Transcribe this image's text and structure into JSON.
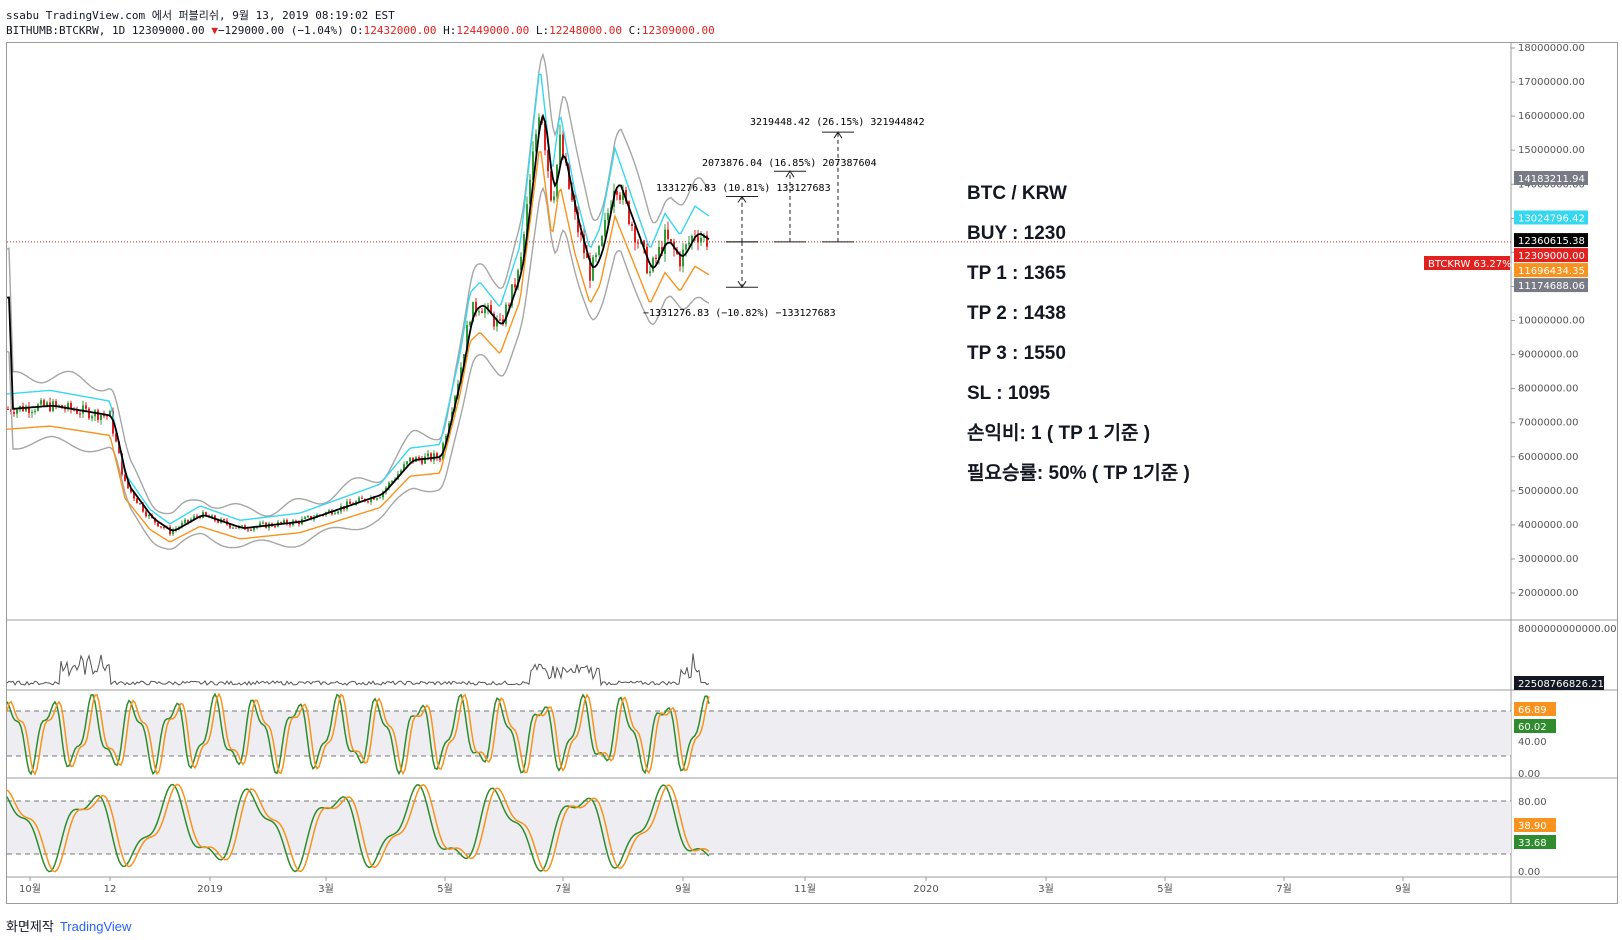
{
  "header": {
    "line1": "ssabu TradingView.com 에서 퍼블리쉬, 9월 13, 2019 08:19:02 EST",
    "symbol": "BITHUMB:BTCKRW, 1D 12309000.00",
    "change": "−129000.00 (−1.04%)",
    "o_label": "O:",
    "o_value": "12432000.00",
    "h_label": "H:",
    "h_value": "12449000.00",
    "l_label": "L:",
    "l_value": "12248000.00",
    "c_label": "C:",
    "c_value": "12309000.00"
  },
  "plan": {
    "pair": "BTC / KRW",
    "buy": "BUY : 1230",
    "tp1": "TP 1 : 1365",
    "tp2": "TP 2 : 1438",
    "tp3": "TP 3 : 1550",
    "sl": "SL : 1095",
    "rr": "손익비: 1 ( TP 1 기준 )",
    "winrate": "필요승률: 50% (  TP 1기준 )"
  },
  "measures": {
    "m1": "1331276.83 (10.81%) 133127683",
    "m2": "2073876.04 (16.85%) 207387604",
    "m3": "3219448.42 (26.15%) 321944842",
    "m4": "−1331276.83 (−10.82%) −133127683"
  },
  "price_axis": {
    "ticks": [
      "18000000.00",
      "17000000.00",
      "16000000.00",
      "15000000.00",
      "14000000.00",
      "13000000.00",
      "12000000.00",
      "11000000.00",
      "10000000.00",
      "9000000.00",
      "8000000.00",
      "7000000.00",
      "6000000.00",
      "5000000.00",
      "4000000.00",
      "3000000.00",
      "2000000.00"
    ],
    "badges": [
      {
        "text": "14183211.94",
        "color": "#787b86"
      },
      {
        "text": "13024796.42",
        "color": "#36d7f0"
      },
      {
        "text": "12360615.38",
        "color": "#000000"
      },
      {
        "text": "12309000.00",
        "color": "#e0211f"
      },
      {
        "text": "11696434.35",
        "color": "#f7931e"
      },
      {
        "text": "11174688.06",
        "color": "#787b86"
      }
    ],
    "symbol_badge": "BTCKRW 63.27%"
  },
  "volume_axis": {
    "tick": "8000000000000.00",
    "badge": "22508766826.21"
  },
  "osc1": {
    "ticks": [
      "40.00",
      "0.00"
    ],
    "badge_orange": "66.89",
    "badge_green": "60.02"
  },
  "osc2": {
    "ticks": [
      "80.00",
      "0.00"
    ],
    "badge_orange": "38.90",
    "badge_green": "33.68"
  },
  "time_axis": [
    "10월",
    "12",
    "2019",
    "3월",
    "5월",
    "7월",
    "9월",
    "11월",
    "2020",
    "3월",
    "5월",
    "7월",
    "9월"
  ],
  "colors": {
    "up": "#2e9e3a",
    "down": "#e0211f",
    "bb": "#a6a6a6",
    "cyan": "#36d7f0",
    "orange": "#f7931e",
    "green": "#2e8b2e"
  },
  "footer": {
    "label": "화면제작",
    "brand": "TradingView"
  },
  "chart_data": {
    "type": "line",
    "title": "BITHUMB:BTCKRW, 1D",
    "x": [
      "10월",
      "12",
      "2019",
      "3월",
      "5월",
      "7월",
      "9월"
    ],
    "series": [
      {
        "name": "BTCKRW",
        "values": [
          7400000,
          4200000,
          4100000,
          4300000,
          5800000,
          13000000,
          12309000
        ]
      }
    ],
    "ylim": [
      2000000,
      18000000
    ],
    "levels": {
      "buy": 12309000,
      "tp1": 13640276,
      "tp2": 14382876,
      "tp3": 15528448,
      "sl": 10977723
    }
  }
}
